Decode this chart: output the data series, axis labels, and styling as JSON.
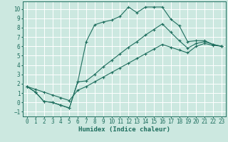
{
  "title": "",
  "xlabel": "Humidex (Indice chaleur)",
  "xlim": [
    -0.5,
    23.5
  ],
  "ylim": [
    -1.5,
    10.8
  ],
  "xticks": [
    0,
    1,
    2,
    3,
    4,
    5,
    6,
    7,
    8,
    9,
    10,
    11,
    12,
    13,
    14,
    15,
    16,
    17,
    18,
    19,
    20,
    21,
    22,
    23
  ],
  "yticks": [
    -1,
    0,
    1,
    2,
    3,
    4,
    5,
    6,
    7,
    8,
    9,
    10
  ],
  "line_color": "#1e6e5e",
  "bg_color": "#cce8e0",
  "grid_color": "#ffffff",
  "line1_x": [
    0,
    1,
    2,
    3,
    4,
    5,
    6,
    7,
    8,
    9,
    10,
    11,
    12,
    13,
    14,
    15,
    16,
    17,
    18,
    19,
    20,
    21,
    22,
    23
  ],
  "line1_y": [
    1.7,
    1.1,
    0.1,
    0.0,
    -0.3,
    -0.6,
    2.2,
    6.5,
    8.3,
    8.6,
    8.8,
    9.2,
    10.2,
    9.6,
    10.2,
    10.2,
    10.2,
    8.9,
    8.2,
    6.5,
    6.6,
    6.6,
    6.2,
    6.0
  ],
  "line2_x": [
    0,
    1,
    2,
    3,
    4,
    5,
    6,
    7,
    8,
    9,
    10,
    11,
    12,
    13,
    14,
    15,
    16,
    17,
    18,
    19,
    20,
    21,
    22,
    23
  ],
  "line2_y": [
    1.7,
    1.1,
    0.1,
    0.0,
    -0.3,
    -0.6,
    2.2,
    2.3,
    3.0,
    3.8,
    4.5,
    5.2,
    5.9,
    6.5,
    7.2,
    7.8,
    8.4,
    7.5,
    6.6,
    5.8,
    6.3,
    6.5,
    6.2,
    6.0
  ],
  "line3_x": [
    0,
    1,
    2,
    3,
    4,
    5,
    6,
    7,
    8,
    9,
    10,
    11,
    12,
    13,
    14,
    15,
    16,
    17,
    18,
    19,
    20,
    21,
    22,
    23
  ],
  "line3_y": [
    1.7,
    1.4,
    1.1,
    0.8,
    0.5,
    0.2,
    1.3,
    1.7,
    2.2,
    2.7,
    3.2,
    3.7,
    4.2,
    4.7,
    5.2,
    5.7,
    6.2,
    5.9,
    5.6,
    5.3,
    6.0,
    6.3,
    6.1,
    6.0
  ],
  "tick_fontsize": 5.5,
  "xlabel_fontsize": 6.5
}
